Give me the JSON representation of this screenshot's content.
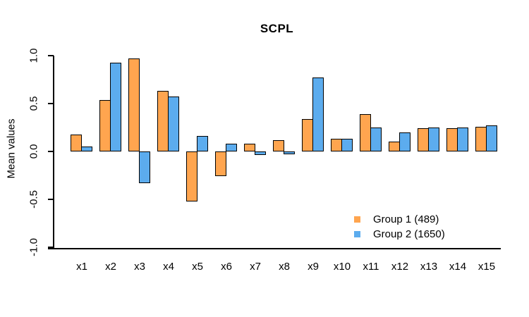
{
  "title": "SCPL",
  "ylabel": "Mean values",
  "legend": [
    {
      "label": "Group 1 (489)",
      "color": "#FFA54F"
    },
    {
      "label": "Group 2 (1650)",
      "color": "#5CACEE"
    }
  ],
  "chart_data": {
    "type": "bar",
    "title": "SCPL",
    "xlabel": "",
    "ylabel": "Mean values",
    "categories": [
      "x1",
      "x2",
      "x3",
      "x4",
      "x5",
      "x6",
      "x7",
      "x8",
      "x9",
      "x10",
      "x11",
      "x12",
      "x13",
      "x14",
      "x15"
    ],
    "series": [
      {
        "name": "Group 1 (489)",
        "color": "#FFA54F",
        "values": [
          0.18,
          0.54,
          0.97,
          0.63,
          -0.52,
          -0.26,
          0.08,
          0.12,
          0.34,
          0.13,
          0.39,
          0.1,
          0.24,
          0.24,
          0.26
        ]
      },
      {
        "name": "Group 2 (1650)",
        "color": "#5CACEE",
        "values": [
          0.05,
          0.93,
          -0.33,
          0.57,
          0.16,
          0.08,
          -0.04,
          -0.03,
          0.77,
          0.13,
          0.25,
          0.2,
          0.25,
          0.25,
          0.27
        ]
      }
    ],
    "ylim": [
      -1.0,
      1.0
    ],
    "ytick_values": [
      1.0,
      0.5,
      0.0,
      -0.5,
      -1.0
    ],
    "ytick_labels": [
      "1.0",
      "0.5",
      "0.0",
      "-0.5",
      "-1.0"
    ],
    "bar_border_color": "#000000",
    "grid": false,
    "legend_position": "inside-bottom-right"
  }
}
